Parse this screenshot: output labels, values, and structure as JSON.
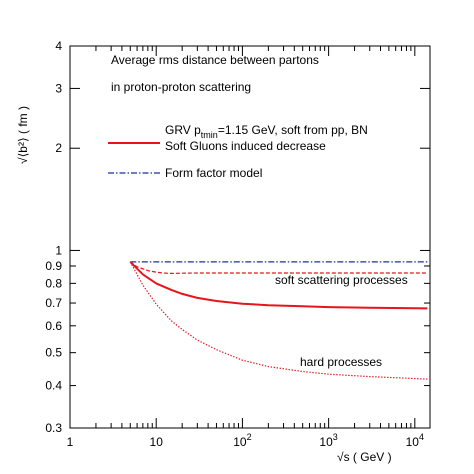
{
  "chart_data": {
    "type": "line",
    "title_lines": [
      "Average rms distance between partons",
      "in proton-proton scattering"
    ],
    "xlabel": "√s ( GeV )",
    "ylabel": "√⟨b²⟩ ( fm )",
    "x_scale": "log",
    "y_scale": "log",
    "xlim": [
      1,
      15000
    ],
    "ylim": [
      0.3,
      4
    ],
    "x_ticks": [
      {
        "value": 1,
        "base": "1",
        "exp": ""
      },
      {
        "value": 10,
        "base": "10",
        "exp": ""
      },
      {
        "value": 100,
        "base": "10",
        "exp": "2"
      },
      {
        "value": 1000,
        "base": "10",
        "exp": "3"
      },
      {
        "value": 10000,
        "base": "10",
        "exp": "4"
      }
    ],
    "y_ticks": [
      {
        "value": 0.3,
        "label": "0.3"
      },
      {
        "value": 0.4,
        "label": "0.4"
      },
      {
        "value": 0.5,
        "label": "0.5"
      },
      {
        "value": 0.6,
        "label": "0.6"
      },
      {
        "value": 0.7,
        "label": "0.7"
      },
      {
        "value": 0.8,
        "label": "0.8"
      },
      {
        "value": 0.9,
        "label": "0.9"
      },
      {
        "value": 1,
        "label": "1"
      },
      {
        "value": 2,
        "label": "2"
      },
      {
        "value": 3,
        "label": "3"
      },
      {
        "value": 4,
        "label": "4"
      }
    ],
    "legend": {
      "placement": "upper-middle",
      "entries": [
        {
          "key": "grv",
          "lines": [
            "GRV p",
            "tmin",
            "=1.15 GeV, soft from pp, BN",
            "Soft Gluons induced  decrease"
          ],
          "color": "#e8141c",
          "style": "solid"
        },
        {
          "key": "ff",
          "lines": [
            "Form factor model"
          ],
          "color": "#1c2ea8",
          "style": "dashdot"
        }
      ]
    },
    "annotations": [
      {
        "text": "soft scattering processes",
        "at": [
          2000,
          0.8
        ]
      },
      {
        "text": "hard processes",
        "at": [
          400,
          0.455
        ]
      }
    ],
    "series": [
      {
        "key": "form_factor",
        "color": "#1c2ea8",
        "style": "dashdot",
        "x": [
          5,
          10,
          100,
          1000,
          14000
        ],
        "y": [
          0.925,
          0.925,
          0.925,
          0.925,
          0.925
        ]
      },
      {
        "key": "soft",
        "color": "#e8141c",
        "style": "dashed",
        "x": [
          5,
          6,
          8,
          10,
          12,
          15,
          20,
          30,
          50,
          100,
          300,
          1000,
          3000,
          14000
        ],
        "y": [
          0.925,
          0.895,
          0.872,
          0.863,
          0.858,
          0.856,
          0.857,
          0.858,
          0.858,
          0.858,
          0.858,
          0.858,
          0.858,
          0.858
        ]
      },
      {
        "key": "total",
        "color": "#e8141c",
        "style": "solid",
        "x": [
          5,
          7,
          10,
          15,
          20,
          30,
          50,
          100,
          200,
          500,
          1000,
          3000,
          14000
        ],
        "y": [
          0.925,
          0.85,
          0.8,
          0.765,
          0.745,
          0.725,
          0.71,
          0.697,
          0.69,
          0.685,
          0.681,
          0.678,
          0.675
        ]
      },
      {
        "key": "hard",
        "color": "#e8141c",
        "style": "dotted",
        "x": [
          5,
          7,
          10,
          15,
          20,
          30,
          50,
          100,
          200,
          500,
          1000,
          3000,
          14000
        ],
        "y": [
          0.925,
          0.79,
          0.695,
          0.62,
          0.585,
          0.545,
          0.51,
          0.475,
          0.455,
          0.44,
          0.432,
          0.425,
          0.418
        ]
      }
    ]
  }
}
